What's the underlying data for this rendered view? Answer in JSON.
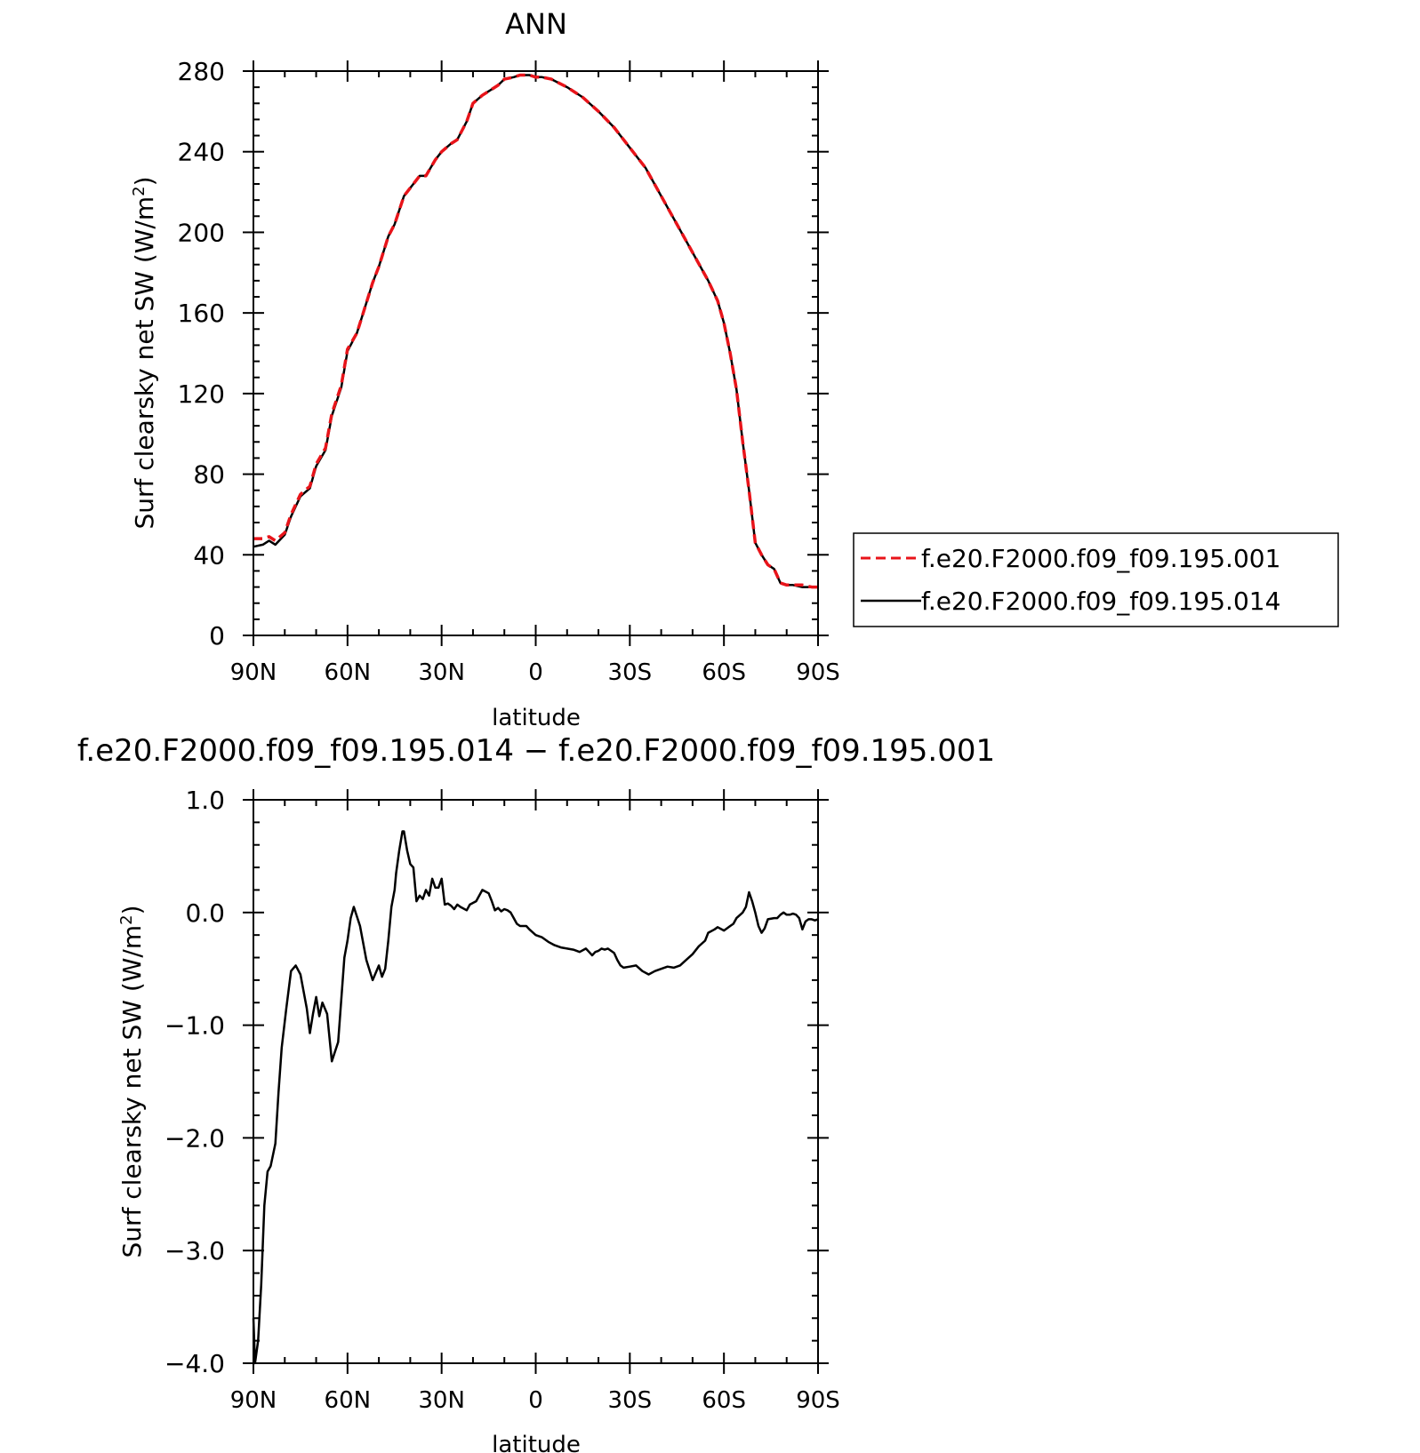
{
  "colors": {
    "case1": "#e8141a",
    "case2": "#000000",
    "axis": "#000000"
  },
  "chart_data": [
    {
      "type": "line",
      "title": "ANN",
      "xlabel": "latitude",
      "ylabel_prefix": "Surf clearsky net SW (W/m",
      "ylabel_sup": "2",
      "ylabel_suffix": ")",
      "xlim": [
        90,
        -90
      ],
      "ylim": [
        0,
        280
      ],
      "xticks": [
        90,
        60,
        30,
        0,
        -30,
        -60,
        -90
      ],
      "xtick_labels": [
        "90N",
        "60N",
        "30N",
        "0",
        "30S",
        "60S",
        "90S"
      ],
      "yticks": [
        0,
        40,
        80,
        120,
        160,
        200,
        240,
        280
      ],
      "ytick_labels": [
        "0",
        "40",
        "80",
        "120",
        "160",
        "200",
        "240",
        "280"
      ],
      "legend": {
        "placement": "outside-right"
      },
      "series": [
        {
          "name": "f.e20.F2000.f09_f09.195.001",
          "style": "dashed",
          "color": "#e8141a",
          "x": [
            90,
            87,
            85,
            83,
            80,
            78,
            75,
            72,
            70,
            67,
            65,
            62,
            60,
            57,
            55,
            52,
            50,
            47,
            45,
            42,
            40,
            37,
            35,
            32,
            30,
            27,
            25,
            22,
            20,
            17,
            15,
            12,
            10,
            7,
            5,
            2,
            0,
            -2,
            -5,
            -10,
            -15,
            -20,
            -25,
            -30,
            -35,
            -40,
            -45,
            -50,
            -55,
            -58,
            -60,
            -62,
            -64,
            -66,
            -68,
            -70,
            -72,
            -74,
            -76,
            -78,
            -80,
            -82,
            -85,
            -88,
            -90
          ],
          "y": [
            48,
            48,
            49,
            47,
            51,
            60,
            70,
            74,
            85,
            93,
            110,
            124,
            142,
            150,
            160,
            175,
            183,
            198,
            204,
            218,
            222,
            228,
            228,
            236,
            240,
            244,
            246,
            255,
            264,
            268,
            270,
            273,
            276,
            277,
            278,
            278,
            277,
            277,
            276,
            272,
            267,
            260,
            252,
            242,
            232,
            218,
            204,
            190,
            176,
            166,
            155,
            140,
            122,
            96,
            72,
            46,
            40,
            35,
            33,
            26,
            25,
            25,
            25,
            24,
            24
          ]
        },
        {
          "name": "f.e20.F2000.f09_f09.195.014",
          "style": "solid",
          "color": "#000000",
          "x": [
            90,
            87,
            85,
            83,
            80,
            78,
            75,
            72,
            70,
            67,
            65,
            62,
            60,
            57,
            55,
            52,
            50,
            47,
            45,
            42,
            40,
            37,
            35,
            32,
            30,
            27,
            25,
            22,
            20,
            17,
            15,
            12,
            10,
            7,
            5,
            2,
            0,
            -2,
            -5,
            -10,
            -15,
            -20,
            -25,
            -30,
            -35,
            -40,
            -45,
            -50,
            -55,
            -58,
            -60,
            -62,
            -64,
            -66,
            -68,
            -70,
            -72,
            -74,
            -76,
            -78,
            -80,
            -82,
            -85,
            -88,
            -90
          ],
          "y": [
            44,
            45,
            47,
            45,
            50,
            59,
            69,
            73,
            84,
            92,
            109,
            123,
            141,
            150,
            160,
            175,
            183,
            198,
            204,
            218,
            222,
            228,
            228,
            236,
            240,
            244,
            246,
            255,
            264,
            268,
            270,
            273,
            276,
            277,
            278,
            278,
            277,
            277,
            276,
            272,
            267,
            260,
            252,
            242,
            232,
            218,
            204,
            190,
            176,
            166,
            155,
            140,
            122,
            96,
            72,
            46,
            40,
            35,
            33,
            26,
            25,
            25,
            24,
            24,
            24
          ]
        }
      ]
    },
    {
      "type": "line",
      "title": "f.e20.F2000.f09_f09.195.014 − f.e20.F2000.f09_f09.195.001",
      "xlabel": "latitude",
      "ylabel_prefix": "Surf clearsky net SW (W/m",
      "ylabel_sup": "2",
      "ylabel_suffix": ")",
      "xlim": [
        90,
        -90
      ],
      "ylim": [
        -4.0,
        1.0
      ],
      "xticks": [
        90,
        60,
        30,
        0,
        -30,
        -60,
        -90
      ],
      "xtick_labels": [
        "90N",
        "60N",
        "30N",
        "0",
        "30S",
        "60S",
        "90S"
      ],
      "yticks": [
        1.0,
        0.0,
        -1.0,
        -2.0,
        -3.0,
        -4.0
      ],
      "ytick_labels": [
        "1.0",
        "0.0",
        "−1.0",
        "−2.0",
        "−3.0",
        "−4.0"
      ],
      "series": [
        {
          "color": "#000000",
          "style": "solid",
          "x": [
            90,
            89.5,
            88.5,
            87.5,
            86.5,
            85.5,
            84.5,
            83,
            82,
            81,
            79.5,
            78,
            76.5,
            75,
            73,
            72,
            71,
            70,
            69,
            68,
            66.5,
            65,
            63,
            61,
            60,
            59,
            58,
            56,
            54,
            52,
            50,
            49,
            48,
            47,
            46,
            45,
            44.5,
            43.5,
            42.5,
            42,
            41,
            40,
            39,
            38,
            37,
            36,
            35,
            34,
            33,
            32,
            31,
            30,
            29,
            28,
            27,
            26,
            25,
            24,
            22,
            21,
            19,
            17,
            15,
            14,
            13,
            12,
            11,
            10,
            9,
            8,
            7,
            6,
            5,
            4,
            3,
            2,
            0,
            -2,
            -4,
            -6,
            -8,
            -10,
            -12,
            -14,
            -16,
            -17,
            -18,
            -19,
            -20,
            -21,
            -22,
            -23,
            -24,
            -25,
            -26,
            -27,
            -28,
            -30,
            -32,
            -34,
            -36,
            -38,
            -40,
            -42,
            -44,
            -46,
            -48,
            -50,
            -52,
            -54,
            -55,
            -57,
            -58,
            -60,
            -62,
            -63,
            -64,
            -66,
            -67,
            -68,
            -69,
            -70,
            -71,
            -72,
            -73,
            -74,
            -76,
            -77,
            -78,
            -79,
            -80,
            -81,
            -82,
            -83,
            -84,
            -85,
            -86,
            -87,
            -88,
            -89,
            -90
          ],
          "y": [
            -3.6,
            -4.0,
            -3.8,
            -3.3,
            -2.6,
            -2.3,
            -2.25,
            -2.05,
            -1.6,
            -1.2,
            -0.85,
            -0.52,
            -0.47,
            -0.55,
            -0.85,
            -1.07,
            -0.9,
            -0.75,
            -0.92,
            -0.8,
            -0.9,
            -1.32,
            -1.15,
            -0.4,
            -0.25,
            -0.05,
            0.05,
            -0.12,
            -0.42,
            -0.6,
            -0.47,
            -0.57,
            -0.5,
            -0.25,
            0.05,
            0.2,
            0.35,
            0.55,
            0.72,
            0.72,
            0.55,
            0.43,
            0.4,
            0.1,
            0.15,
            0.12,
            0.2,
            0.15,
            0.3,
            0.22,
            0.22,
            0.3,
            0.07,
            0.08,
            0.06,
            0.03,
            0.07,
            0.05,
            0.02,
            0.07,
            0.1,
            0.2,
            0.17,
            0.1,
            0.02,
            0.04,
            0.01,
            0.03,
            0.02,
            0.0,
            -0.05,
            -0.1,
            -0.12,
            -0.12,
            -0.12,
            -0.15,
            -0.2,
            -0.22,
            -0.26,
            -0.29,
            -0.31,
            -0.32,
            -0.33,
            -0.35,
            -0.32,
            -0.35,
            -0.38,
            -0.35,
            -0.34,
            -0.32,
            -0.33,
            -0.32,
            -0.34,
            -0.36,
            -0.42,
            -0.47,
            -0.49,
            -0.48,
            -0.47,
            -0.52,
            -0.55,
            -0.52,
            -0.5,
            -0.48,
            -0.49,
            -0.47,
            -0.42,
            -0.37,
            -0.3,
            -0.25,
            -0.18,
            -0.15,
            -0.13,
            -0.16,
            -0.12,
            -0.1,
            -0.05,
            0.0,
            0.05,
            0.18,
            0.1,
            0.0,
            -0.12,
            -0.18,
            -0.14,
            -0.06,
            -0.05,
            -0.05,
            -0.02,
            0.0,
            -0.02,
            -0.02,
            -0.01,
            -0.02,
            -0.05,
            -0.15,
            -0.08,
            -0.06,
            -0.06,
            -0.07,
            -0.06
          ]
        }
      ]
    }
  ]
}
